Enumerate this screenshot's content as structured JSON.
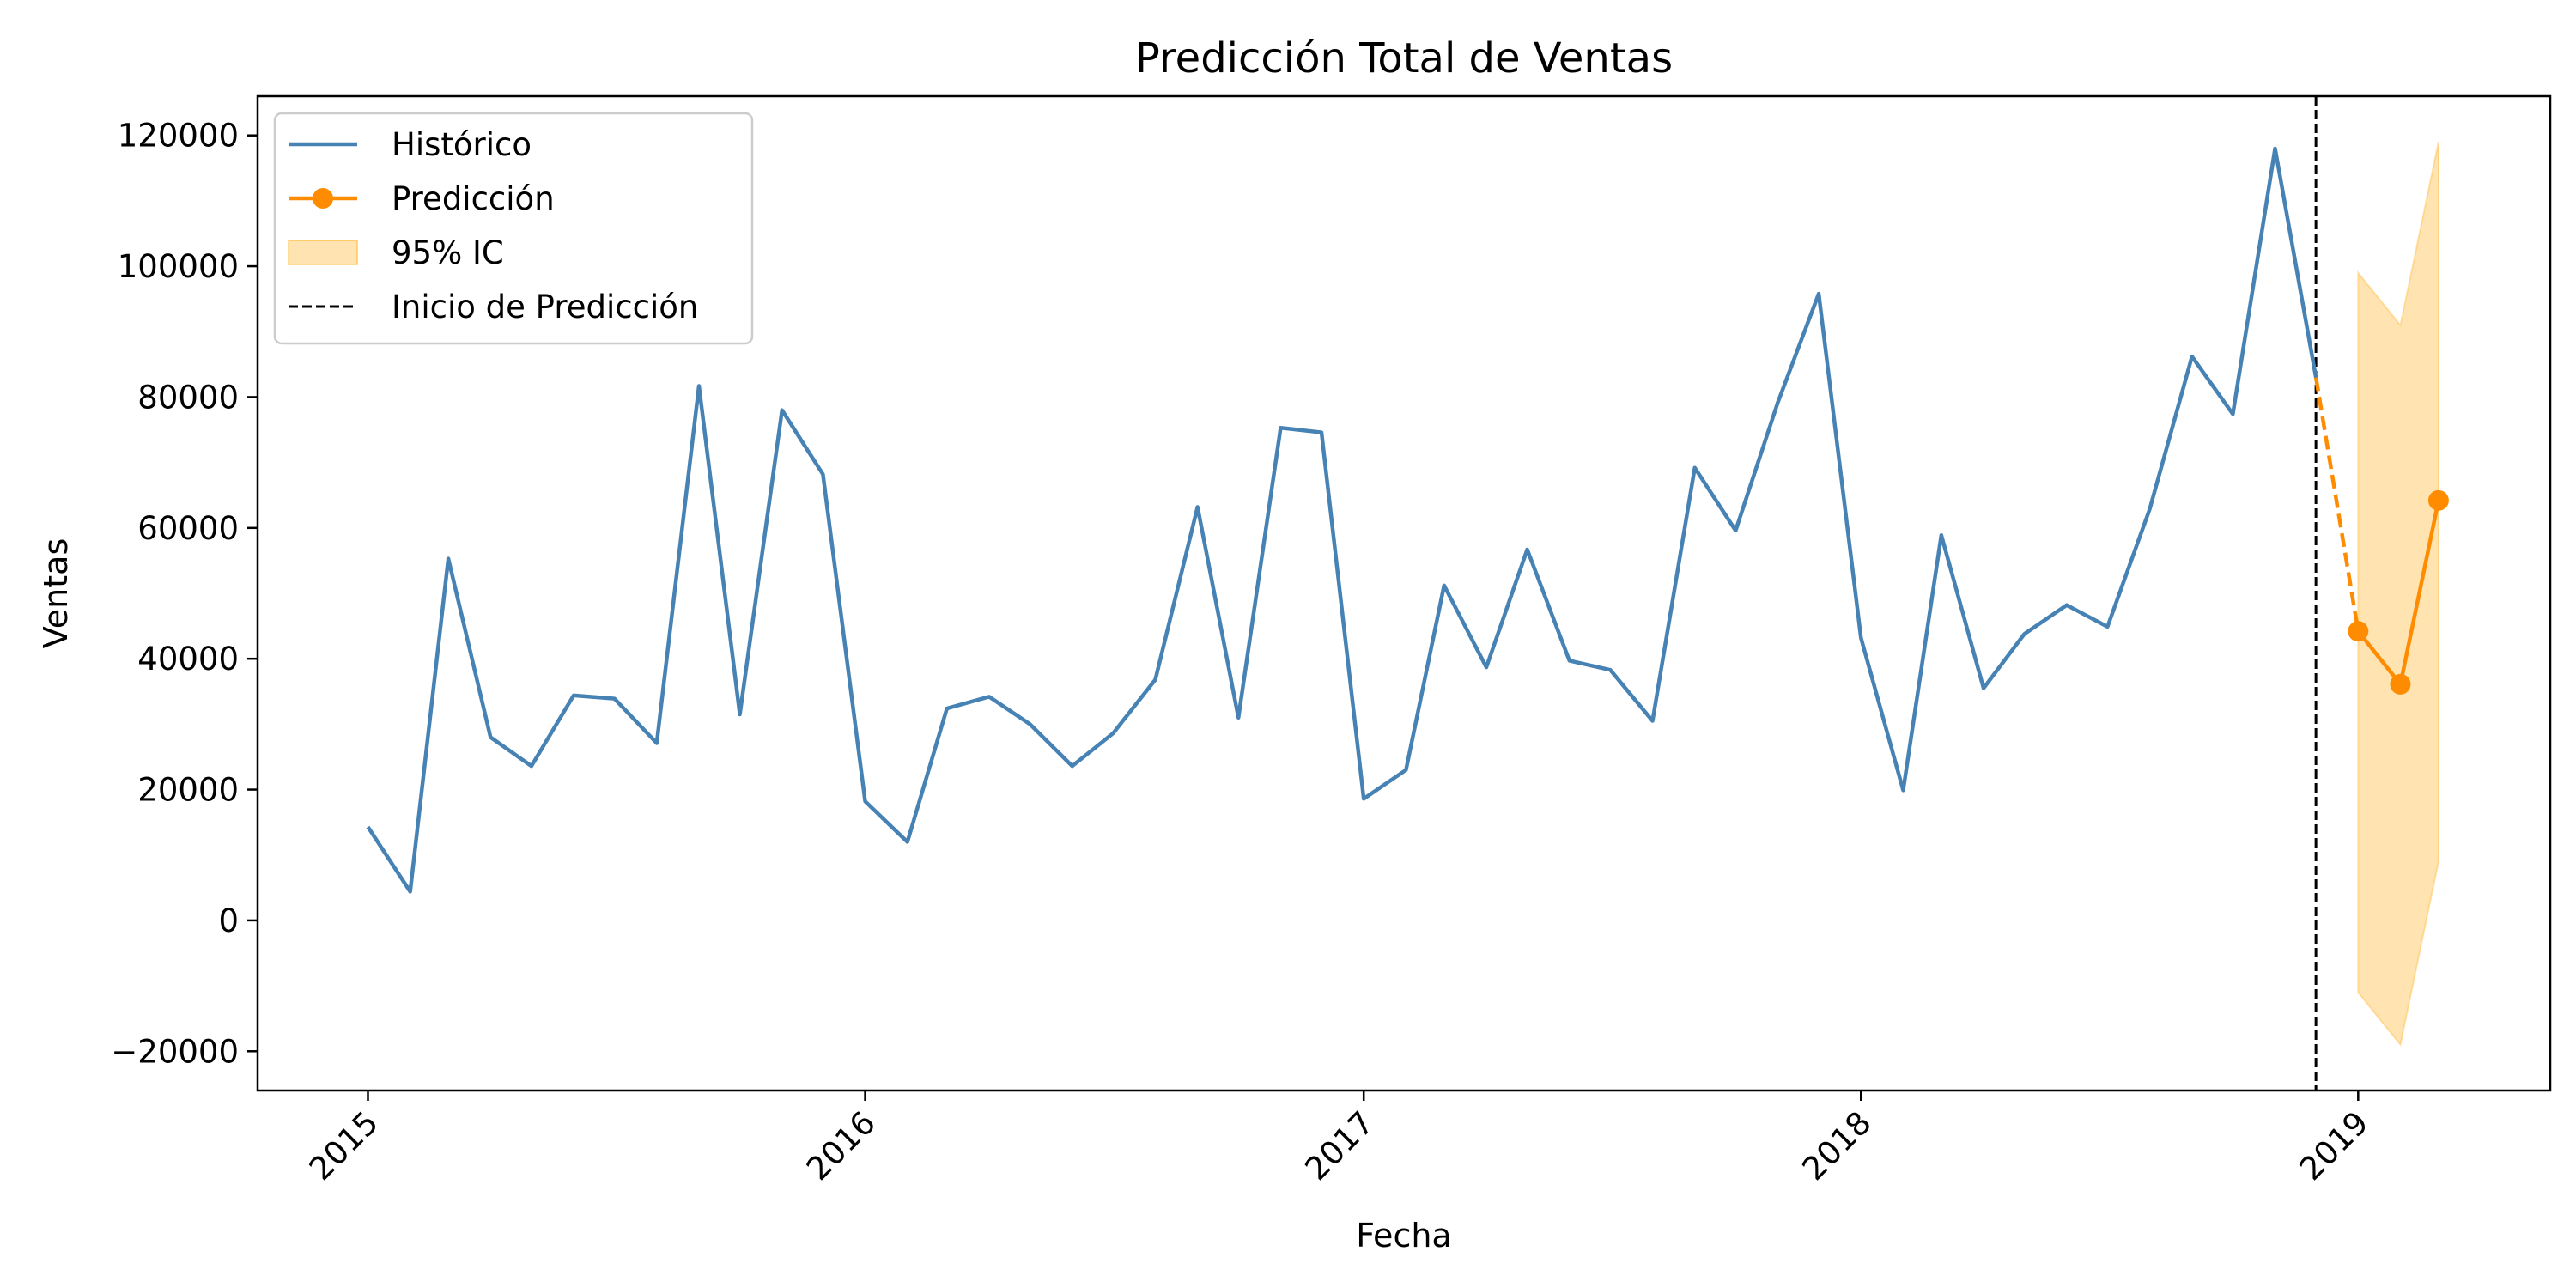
{
  "chart_data": {
    "type": "line",
    "title": "Predicción Total de Ventas",
    "xlabel": "Fecha",
    "ylabel": "Ventas",
    "xlim": [
      "2014-10-12",
      "2019-05-22"
    ],
    "ylim": [
      -26000,
      126000
    ],
    "y_ticks": [
      -20000,
      0,
      20000,
      40000,
      60000,
      80000,
      100000,
      120000
    ],
    "y_tick_labels": [
      "−20000",
      "0",
      "20000",
      "40000",
      "60000",
      "80000",
      "100000",
      "120000"
    ],
    "x_ticks": [
      "2015-01-01",
      "2016-01-01",
      "2017-01-01",
      "2018-01-01",
      "2019-01-01"
    ],
    "x_tick_labels": [
      "2015",
      "2016",
      "2017",
      "2018",
      "2019"
    ],
    "grid": false,
    "legend_position": "top-left",
    "legend": [
      {
        "label": "Histórico",
        "kind": "line",
        "color": "#4682b4"
      },
      {
        "label": "Predicción",
        "kind": "line-marker",
        "color": "#ff8c00"
      },
      {
        "label": "95% IC",
        "kind": "band",
        "color": "#ffa500"
      },
      {
        "label": "Inicio de Predicción",
        "kind": "dashed",
        "color": "#000000"
      }
    ],
    "series": [
      {
        "name": "Histórico",
        "color": "#4682b4",
        "x": [
          "2015-01-01",
          "2015-02-01",
          "2015-03-01",
          "2015-04-01",
          "2015-05-01",
          "2015-06-01",
          "2015-07-01",
          "2015-08-01",
          "2015-09-01",
          "2015-10-01",
          "2015-11-01",
          "2015-12-01",
          "2016-01-01",
          "2016-02-01",
          "2016-03-01",
          "2016-04-01",
          "2016-05-01",
          "2016-06-01",
          "2016-07-01",
          "2016-08-01",
          "2016-09-01",
          "2016-10-01",
          "2016-11-01",
          "2016-12-01",
          "2017-01-01",
          "2017-02-01",
          "2017-03-01",
          "2017-04-01",
          "2017-05-01",
          "2017-06-01",
          "2017-07-01",
          "2017-08-01",
          "2017-09-01",
          "2017-10-01",
          "2017-11-01",
          "2017-12-01",
          "2018-01-01",
          "2018-02-01",
          "2018-03-01",
          "2018-04-01",
          "2018-05-01",
          "2018-06-01",
          "2018-07-01",
          "2018-08-01",
          "2018-09-01",
          "2018-10-01",
          "2018-11-01",
          "2018-12-01"
        ],
        "values": [
          14300,
          4400,
          55300,
          28000,
          23600,
          34400,
          33900,
          27100,
          81700,
          31500,
          78000,
          68200,
          18200,
          12000,
          32400,
          34200,
          30000,
          23600,
          28600,
          36800,
          63200,
          31000,
          75300,
          74600,
          18600,
          23000,
          51200,
          38700,
          56700,
          39700,
          38300,
          30500,
          69200,
          59600,
          79200,
          95800,
          43200,
          19900,
          58900,
          35500,
          43800,
          48200,
          44900,
          62900,
          86200,
          77400,
          118000,
          83000
        ]
      },
      {
        "name": "Predicción",
        "color": "#ff8c00",
        "x": [
          "2019-01-01",
          "2019-02-01",
          "2019-03-01"
        ],
        "values": [
          44200,
          36100,
          64200
        ],
        "lower": [
          -11000,
          -19000,
          9000
        ],
        "upper": [
          99000,
          91000,
          119000
        ]
      }
    ],
    "bridge": {
      "x": [
        "2018-12-01",
        "2019-01-01"
      ],
      "values": [
        83000,
        44200
      ],
      "style": "dashed"
    },
    "vline": {
      "x": "2018-12-01",
      "style": "dashed",
      "color": "#000000"
    }
  }
}
